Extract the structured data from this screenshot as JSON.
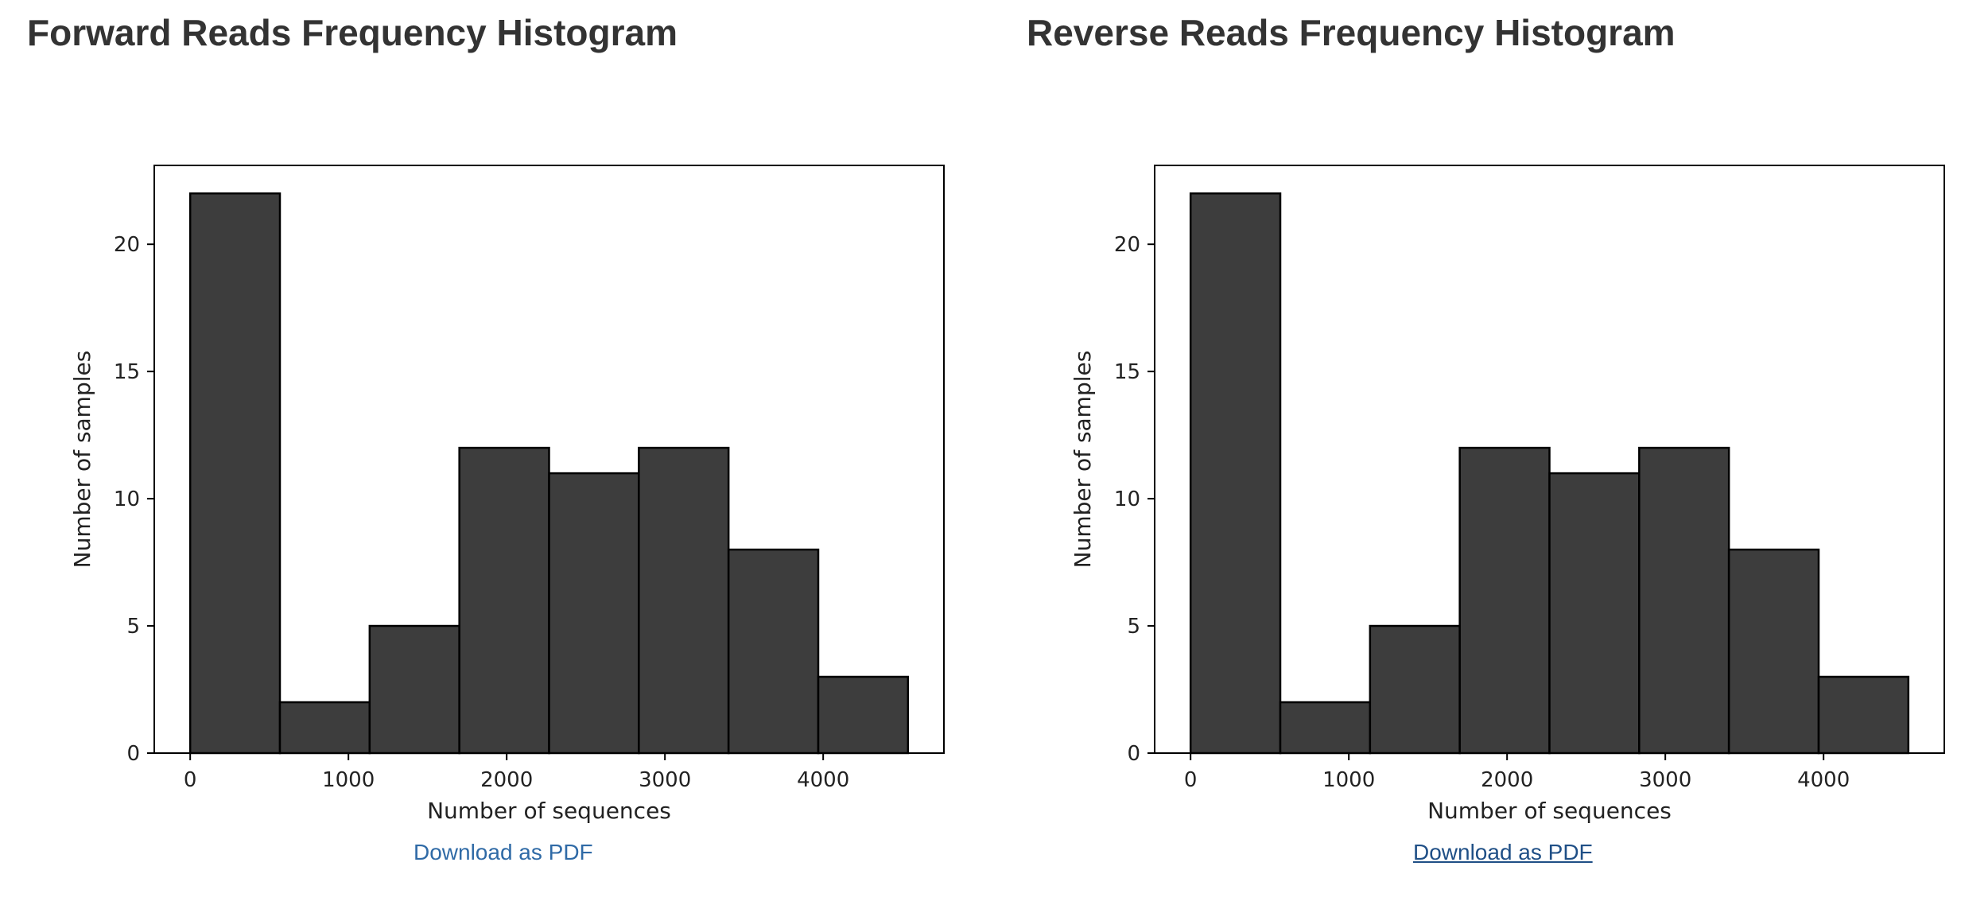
{
  "panels": [
    {
      "title": "Forward Reads Frequency Histogram",
      "download_label": "Download as PDF"
    },
    {
      "title": "Reverse Reads Frequency Histogram",
      "download_label": "Download as PDF"
    }
  ],
  "colors": {
    "bar_fill": "#3d3d3d",
    "bar_edge": "#000000",
    "link": "#2f6aa6",
    "link_visited": "#1f4f86",
    "title": "#333333"
  },
  "chart_data": [
    {
      "type": "bar",
      "title": "",
      "xlabel": "Number of sequences",
      "ylabel": "Number of samples",
      "bin_edges": [
        0,
        567,
        1134,
        1701,
        2268,
        2835,
        3402,
        3969,
        4536
      ],
      "values": [
        22,
        2,
        5,
        12,
        11,
        12,
        8,
        3
      ],
      "xlim": [
        -227,
        4763
      ],
      "ylim": [
        0,
        23.1
      ],
      "xticks": [
        0,
        1000,
        2000,
        3000,
        4000
      ],
      "yticks": [
        0,
        5,
        10,
        15,
        20
      ],
      "grid": false
    },
    {
      "type": "bar",
      "title": "",
      "xlabel": "Number of sequences",
      "ylabel": "Number of samples",
      "bin_edges": [
        0,
        567,
        1134,
        1701,
        2268,
        2835,
        3402,
        3969,
        4536
      ],
      "values": [
        22,
        2,
        5,
        12,
        11,
        12,
        8,
        3
      ],
      "xlim": [
        -227,
        4763
      ],
      "ylim": [
        0,
        23.1
      ],
      "xticks": [
        0,
        1000,
        2000,
        3000,
        4000
      ],
      "yticks": [
        0,
        5,
        10,
        15,
        20
      ],
      "grid": false
    }
  ]
}
